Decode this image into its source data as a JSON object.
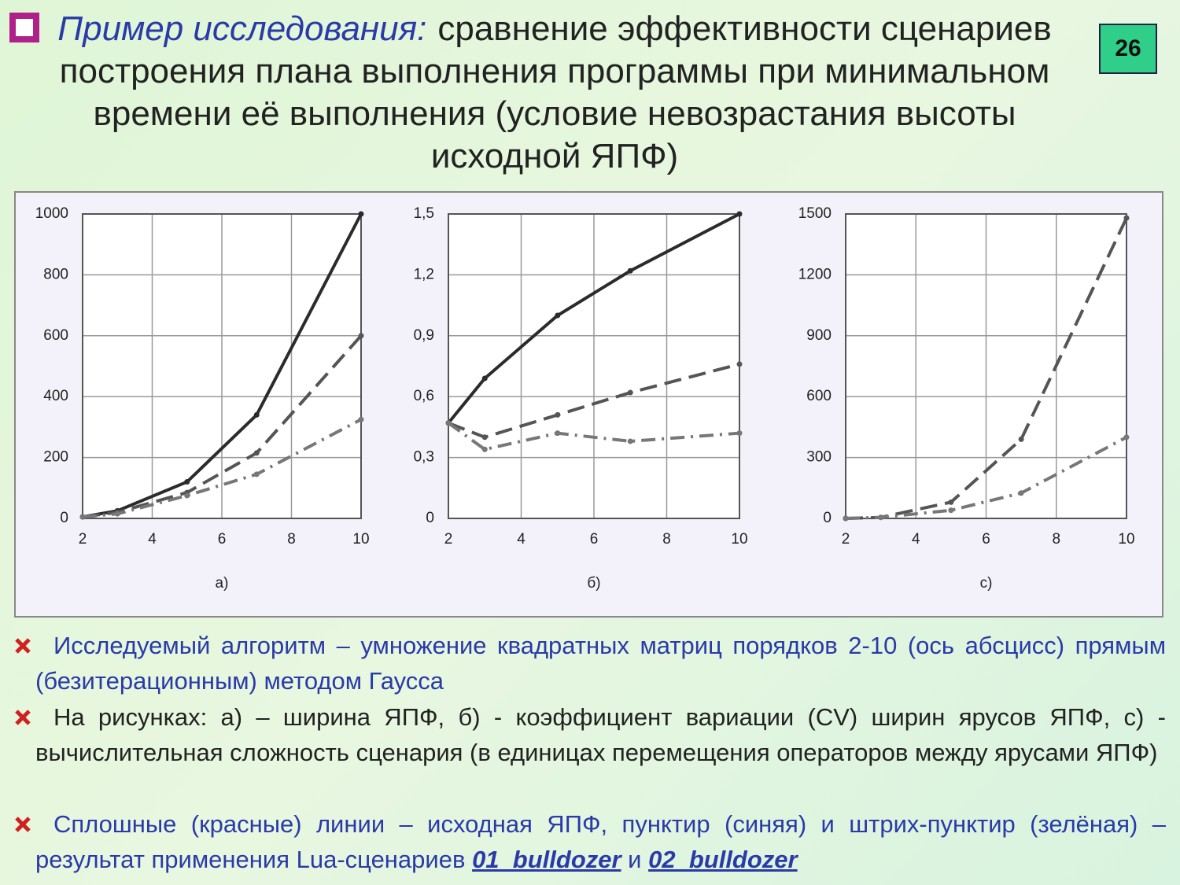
{
  "slide": {
    "title_italic": "Пример исследования:",
    "title": "сравнение эффективности сценариев построения плана выполнения программы при минимальном времени её выполнения (условие невозрастания высоты исходной ЯПФ)",
    "page_number": "26",
    "bullets": [
      [
        "Исследуемый алгоритм – умножение квадратных матриц порядков 2-10 (ось абсцисс) прямым (безитерационным) методом Гаусса"
      ],
      [
        "На рисунках: а) – ширина ЯПФ, б) - коэффициент вариации (CV) ширин ярусов ЯПФ, с) - вычислительная сложность сценария (в единицах перемещения операторов между ярусами ЯПФ)"
      ],
      [
        "Сплошные (красные) линии – исходная ЯПФ, пунктир (синяя) и штрих-пунктир (зелёная) – результат применения Lua-сценариев ",
        "01_bulldozer",
        " и ",
        "02_bulldozer"
      ]
    ]
  },
  "chart_data": [
    {
      "type": "line",
      "label": "а)",
      "x": [
        2,
        3,
        5,
        7,
        10
      ],
      "xlim": [
        2,
        10
      ],
      "xticks": [
        2,
        4,
        6,
        8,
        10
      ],
      "ylim": [
        0,
        1000
      ],
      "yticks": [
        0,
        200,
        400,
        600,
        800,
        1000
      ],
      "grid": true,
      "series": [
        {
          "color": "#2b2b2b",
          "dash": "solid",
          "values": [
            5,
            25,
            120,
            340,
            1000
          ]
        },
        {
          "color": "#555555",
          "dash": "dashed",
          "values": [
            5,
            20,
            85,
            215,
            600
          ]
        },
        {
          "color": "#777777",
          "dash": "dashdot",
          "values": [
            5,
            15,
            75,
            145,
            325
          ]
        }
      ]
    },
    {
      "type": "line",
      "label": "б)",
      "x": [
        2,
        3,
        5,
        7,
        10
      ],
      "xlim": [
        2,
        10
      ],
      "xticks": [
        2,
        4,
        6,
        8,
        10
      ],
      "ylim": [
        0,
        1.5
      ],
      "yticks": [
        0,
        {
          "value": 0.3,
          "label": "0,3"
        },
        {
          "value": 0.6,
          "label": "0,6"
        },
        {
          "value": 0.9,
          "label": "0,9"
        },
        {
          "value": 1.2,
          "label": "1,2"
        },
        {
          "value": 1.5,
          "label": "1,5"
        }
      ],
      "grid": true,
      "series": [
        {
          "color": "#2b2b2b",
          "dash": "solid",
          "values": [
            0.47,
            0.69,
            1.0,
            1.22,
            1.5
          ]
        },
        {
          "color": "#555555",
          "dash": "dashed",
          "values": [
            0.47,
            0.4,
            0.51,
            0.62,
            0.76
          ]
        },
        {
          "color": "#777777",
          "dash": "dashdot",
          "values": [
            0.47,
            0.34,
            0.42,
            0.38,
            0.42
          ]
        }
      ]
    },
    {
      "type": "line",
      "label": "с)",
      "x": [
        2,
        3,
        5,
        7,
        10
      ],
      "xlim": [
        2,
        10
      ],
      "xticks": [
        2,
        4,
        6,
        8,
        10
      ],
      "ylim": [
        0,
        1500
      ],
      "yticks": [
        0,
        300,
        600,
        900,
        1200,
        1500
      ],
      "grid": true,
      "series": [
        {
          "color": "#555555",
          "dash": "dashed",
          "values": [
            0,
            5,
            80,
            390,
            1480
          ]
        },
        {
          "color": "#777777",
          "dash": "dashdot",
          "values": [
            0,
            5,
            40,
            125,
            400
          ]
        }
      ]
    }
  ]
}
